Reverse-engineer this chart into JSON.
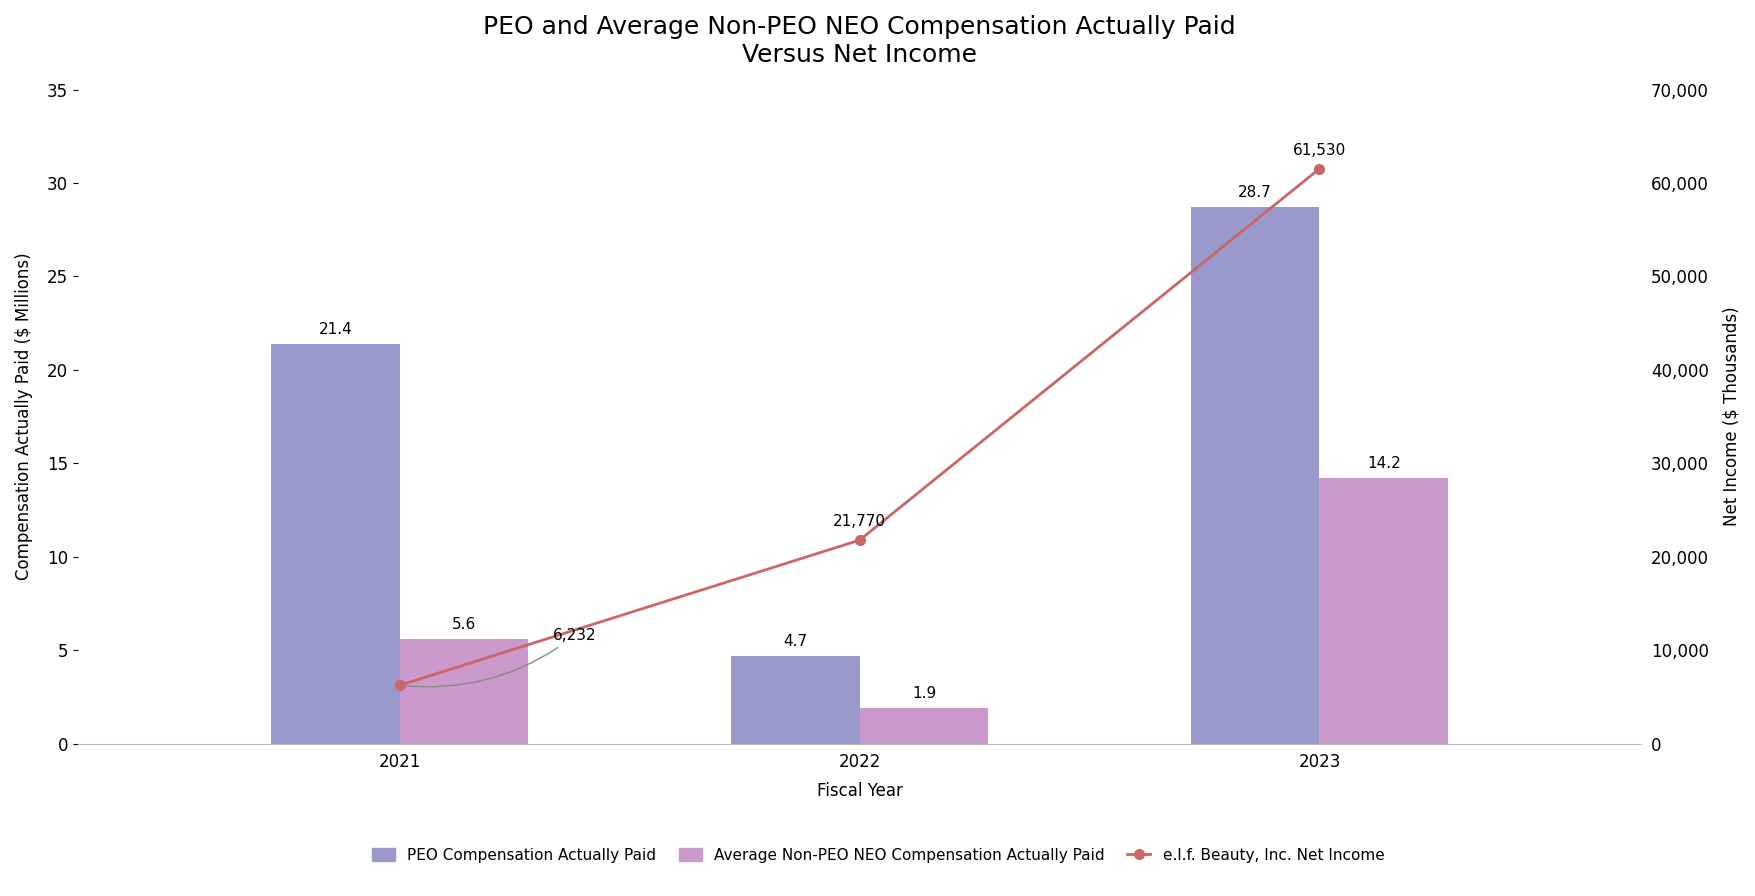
{
  "title_line1": "PEO and Average Non-PEO NEO Compensation Actually Paid",
  "title_line2": "Versus Net Income",
  "years": [
    2021,
    2022,
    2023
  ],
  "peo_values": [
    21.4,
    4.7,
    28.7
  ],
  "neo_values": [
    5.6,
    1.9,
    14.2
  ],
  "net_income": [
    6232,
    21770,
    61530
  ],
  "peo_color": "#9999cc",
  "neo_color": "#cc99cc",
  "line_color": "#cc6666",
  "background_color": "#ffffff",
  "ylabel_left": "Compensation Actually Paid ($ Millions)",
  "ylabel_right": "Net Income ($ Thousands)",
  "xlabel": "Fiscal Year",
  "ylim_left": [
    0,
    35
  ],
  "ylim_right": [
    0,
    70000
  ],
  "yticks_left": [
    0,
    5,
    10,
    15,
    20,
    25,
    30,
    35
  ],
  "yticks_right": [
    0,
    10000,
    20000,
    30000,
    40000,
    50000,
    60000,
    70000
  ],
  "ytick_labels_right": [
    "0",
    "10,000",
    "20,000",
    "30,000",
    "40,000",
    "50,000",
    "60,000",
    "70,000"
  ],
  "legend_peo": "PEO Compensation Actually Paid",
  "legend_neo": "Average Non-PEO NEO Compensation Actually Paid",
  "legend_line": "e.l.f. Beauty, Inc. Net Income",
  "bar_width": 0.28,
  "title_fontsize": 18,
  "label_fontsize": 12,
  "tick_fontsize": 12,
  "annotation_fontsize": 11,
  "legend_fontsize": 11,
  "ni_labels": [
    "6,232",
    "21,770",
    "61,530"
  ]
}
